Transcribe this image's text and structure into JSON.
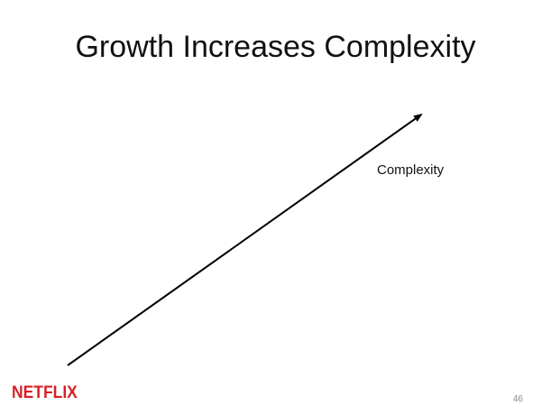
{
  "slide": {
    "title": "Growth Increases Complexity",
    "arrow_label": "Complexity",
    "logo_text": "NETFLIX",
    "page_number": "46"
  },
  "colors": {
    "text": "#111111",
    "arrow": "#000000",
    "brand": "#d81f26",
    "page_number": "#888888"
  }
}
